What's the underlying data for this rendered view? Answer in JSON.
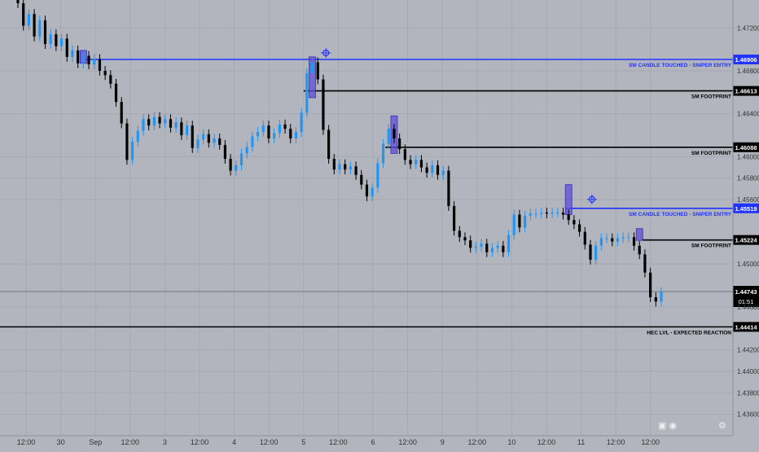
{
  "chart_data": {
    "type": "candlestick",
    "symbol_pair": "",
    "y_range": [
      1.434,
      1.4746
    ],
    "x_tick_labels": [
      "12:00",
      "30",
      "Sep",
      "12:00",
      "3",
      "12:00",
      "4",
      "12:00",
      "5",
      "12:00",
      "6",
      "12:00",
      "9",
      "12:00",
      "10",
      "12:00",
      "11",
      "12:00",
      "12:00"
    ],
    "y_tick_labels": [
      "1.47200",
      "1.46800",
      "1.46400",
      "1.46000",
      "1.45800",
      "1.45600",
      "1.45000",
      "1.44600",
      "1.44200",
      "1.44000",
      "1.43800",
      "1.43600"
    ],
    "y_tick_values": [
      1.472,
      1.468,
      1.464,
      1.46,
      1.458,
      1.456,
      1.45,
      1.446,
      1.442,
      1.44,
      1.438,
      1.436
    ],
    "levels": [
      {
        "label": "SM CANDLE TOUCHED - SNIPER ENTRY",
        "price_label": "1.46906",
        "price": 1.46906,
        "kind": "sniper"
      },
      {
        "label": "SM FOOTPRINT",
        "price_label": "1.46613",
        "price": 1.46613,
        "kind": "footprint"
      },
      {
        "label": "SM FOOTPRINT",
        "price_label": "1.46088",
        "price": 1.46088,
        "kind": "footprint"
      },
      {
        "label": "SM CANDLE TOUCHED - SNIPER ENTRY",
        "price_label": "1.45519",
        "price": 1.45519,
        "kind": "sniper"
      },
      {
        "label": "SM FOOTPRINT",
        "price_label": "1.45224",
        "price": 1.45224,
        "kind": "footprint"
      },
      {
        "label": "HEC LVL - EXPECTED REACTION",
        "price_label": "1.44414",
        "price": 1.44414,
        "kind": "hec"
      }
    ],
    "current_price": {
      "price_label": "1.44743",
      "price": 1.44743,
      "countdown": "01:51"
    },
    "colors": {
      "background": "#b2b5be",
      "up": "#2196f3",
      "down": "#000000",
      "sniper": "#2133ff",
      "footprint": "#000000",
      "box": "#5b50d6",
      "grid": "#a6a9b2"
    },
    "candles": [
      [
        1.4746,
        1.4743
      ],
      [
        1.4743,
        1.4722
      ],
      [
        1.4722,
        1.4733
      ],
      [
        1.4733,
        1.4712
      ],
      [
        1.4712,
        1.4727
      ],
      [
        1.4727,
        1.4705
      ],
      [
        1.4705,
        1.4714
      ],
      [
        1.4714,
        1.4703
      ],
      [
        1.4703,
        1.471
      ],
      [
        1.471,
        1.4693
      ],
      [
        1.4693,
        1.4699
      ],
      [
        1.4699,
        1.4687
      ],
      [
        1.4687,
        1.4694
      ],
      [
        1.4694,
        1.4686
      ],
      [
        1.4686,
        1.4691
      ],
      [
        1.4691,
        1.468
      ],
      [
        1.468,
        1.4676
      ],
      [
        1.4676,
        1.4668
      ],
      [
        1.4668,
        1.4651
      ],
      [
        1.4651,
        1.4631
      ],
      [
        1.4631,
        1.4597
      ],
      [
        1.4597,
        1.4614
      ],
      [
        1.4614,
        1.4624
      ],
      [
        1.4624,
        1.4635
      ],
      [
        1.4635,
        1.4629
      ],
      [
        1.4629,
        1.4637
      ],
      [
        1.4637,
        1.4631
      ],
      [
        1.4631,
        1.4635
      ],
      [
        1.4635,
        1.4627
      ],
      [
        1.4627,
        1.4632
      ],
      [
        1.4632,
        1.462
      ],
      [
        1.462,
        1.4629
      ],
      [
        1.4629,
        1.4608
      ],
      [
        1.4608,
        1.4616
      ],
      [
        1.4616,
        1.4621
      ],
      [
        1.4621,
        1.4613
      ],
      [
        1.4613,
        1.4617
      ],
      [
        1.4617,
        1.4611
      ],
      [
        1.4611,
        1.4598
      ],
      [
        1.4598,
        1.4587
      ],
      [
        1.4587,
        1.4592
      ],
      [
        1.4592,
        1.4603
      ],
      [
        1.4603,
        1.4609
      ],
      [
        1.4609,
        1.4619
      ],
      [
        1.4619,
        1.4623
      ],
      [
        1.4623,
        1.4629
      ],
      [
        1.4629,
        1.4617
      ],
      [
        1.4617,
        1.4622
      ],
      [
        1.4622,
        1.463
      ],
      [
        1.463,
        1.4626
      ],
      [
        1.4626,
        1.4617
      ],
      [
        1.4617,
        1.4623
      ],
      [
        1.4623,
        1.4641
      ],
      [
        1.4641,
        1.4678
      ],
      [
        1.4678,
        1.4688
      ],
      [
        1.4688,
        1.4672
      ],
      [
        1.4672,
        1.4625
      ],
      [
        1.4625,
        1.4598
      ],
      [
        1.4598,
        1.4588
      ],
      [
        1.4588,
        1.4593
      ],
      [
        1.4593,
        1.4588
      ],
      [
        1.4588,
        1.4591
      ],
      [
        1.4591,
        1.4583
      ],
      [
        1.4583,
        1.4574
      ],
      [
        1.4574,
        1.4563
      ],
      [
        1.4563,
        1.4571
      ],
      [
        1.4571,
        1.4594
      ],
      [
        1.4594,
        1.4612
      ],
      [
        1.4612,
        1.4626
      ],
      [
        1.4626,
        1.4617
      ],
      [
        1.4617,
        1.4607
      ],
      [
        1.4607,
        1.4597
      ],
      [
        1.4597,
        1.4593
      ],
      [
        1.4593,
        1.4597
      ],
      [
        1.4597,
        1.459
      ],
      [
        1.459,
        1.4585
      ],
      [
        1.4585,
        1.4592
      ],
      [
        1.4592,
        1.4583
      ],
      [
        1.4583,
        1.4587
      ],
      [
        1.4587,
        1.4554
      ],
      [
        1.4554,
        1.4531
      ],
      [
        1.4531,
        1.4525
      ],
      [
        1.4525,
        1.4522
      ],
      [
        1.4522,
        1.4515
      ],
      [
        1.4515,
        1.4516
      ],
      [
        1.4516,
        1.4519
      ],
      [
        1.4519,
        1.4511
      ],
      [
        1.4511,
        1.4515
      ],
      [
        1.4515,
        1.4517
      ],
      [
        1.4517,
        1.4511
      ],
      [
        1.4511,
        1.4527
      ],
      [
        1.4527,
        1.4546
      ],
      [
        1.4546,
        1.4534
      ],
      [
        1.4534,
        1.4545
      ],
      [
        1.4545,
        1.4547
      ],
      [
        1.4547,
        1.4547
      ],
      [
        1.4547,
        1.4548
      ],
      [
        1.4548,
        1.4547
      ],
      [
        1.4547,
        1.4548
      ],
      [
        1.4548,
        1.4548
      ],
      [
        1.4548,
        1.4546
      ],
      [
        1.4546,
        1.4541
      ],
      [
        1.4541,
        1.4537
      ],
      [
        1.4537,
        1.453
      ],
      [
        1.453,
        1.4518
      ],
      [
        1.4518,
        1.4504
      ],
      [
        1.4504,
        1.4517
      ],
      [
        1.4517,
        1.4524
      ],
      [
        1.4524,
        1.4524
      ],
      [
        1.4524,
        1.4521
      ],
      [
        1.4521,
        1.4524
      ],
      [
        1.4524,
        1.4525
      ],
      [
        1.4525,
        1.4525
      ],
      [
        1.4525,
        1.4517
      ],
      [
        1.4517,
        1.4509
      ],
      [
        1.4509,
        1.4492
      ],
      [
        1.4492,
        1.4469
      ],
      [
        1.4469,
        1.4465
      ],
      [
        1.4465,
        1.4474
      ]
    ],
    "source_boxes": [
      {
        "candle_top": 1.4699,
        "candle_bottom": 1.4687
      },
      {
        "candle_top": 1.4693,
        "candle_bottom": 1.4655
      },
      {
        "candle_top": 1.4638,
        "candle_bottom": 1.4603
      },
      {
        "candle_top": 1.4574,
        "candle_bottom": 1.4546
      },
      {
        "candle_top": 1.4533,
        "candle_bottom": 1.4522
      }
    ]
  }
}
